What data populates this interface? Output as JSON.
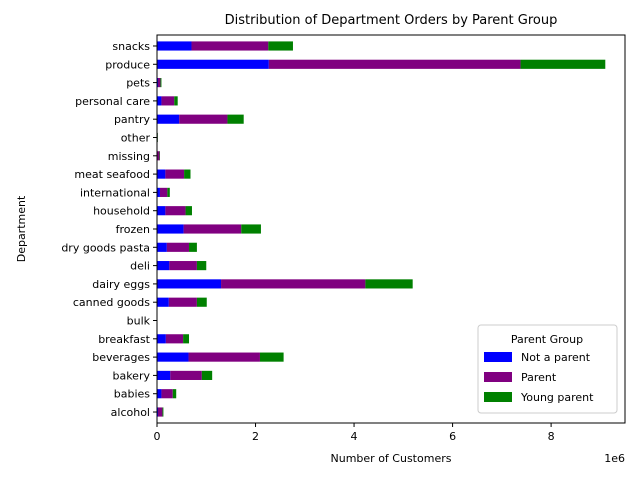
{
  "chart_data": {
    "type": "bar",
    "orientation": "horizontal",
    "stacked": true,
    "title": "Distribution of Department Orders by Parent Group",
    "xlabel": "Number of Customers",
    "ylabel": "Department",
    "x_offset_label": "1e6",
    "xlim": [
      0,
      9.5
    ],
    "x_ticks": [
      0,
      2,
      4,
      6,
      8
    ],
    "grid": false,
    "categories": [
      "alcohol",
      "babies",
      "bakery",
      "beverages",
      "breakfast",
      "bulk",
      "canned goods",
      "dairy eggs",
      "deli",
      "dry goods pasta",
      "frozen",
      "household",
      "international",
      "meat seafood",
      "missing",
      "other",
      "pantry",
      "personal care",
      "pets",
      "produce",
      "snacks"
    ],
    "series": [
      {
        "name": "Not a parent",
        "color": "#0000ff",
        "values": [
          0.02,
          0.09,
          0.27,
          0.64,
          0.18,
          0.0,
          0.24,
          1.3,
          0.25,
          0.2,
          0.54,
          0.17,
          0.06,
          0.17,
          0.01,
          0.005,
          0.45,
          0.09,
          0.02,
          2.27,
          0.7
        ]
      },
      {
        "name": "Parent",
        "color": "#800080",
        "values": [
          0.09,
          0.23,
          0.64,
          1.45,
          0.35,
          0.01,
          0.57,
          2.93,
          0.56,
          0.45,
          1.17,
          0.41,
          0.15,
          0.38,
          0.04,
          0.01,
          0.98,
          0.26,
          0.05,
          5.11,
          1.56
        ]
      },
      {
        "name": "Young parent",
        "color": "#008000",
        "values": [
          0.02,
          0.07,
          0.21,
          0.48,
          0.12,
          0.0,
          0.2,
          0.96,
          0.19,
          0.16,
          0.4,
          0.13,
          0.05,
          0.13,
          0.01,
          0.005,
          0.33,
          0.07,
          0.02,
          1.72,
          0.5
        ]
      }
    ],
    "legend": {
      "title": "Parent Group",
      "position": "lower-right"
    }
  }
}
